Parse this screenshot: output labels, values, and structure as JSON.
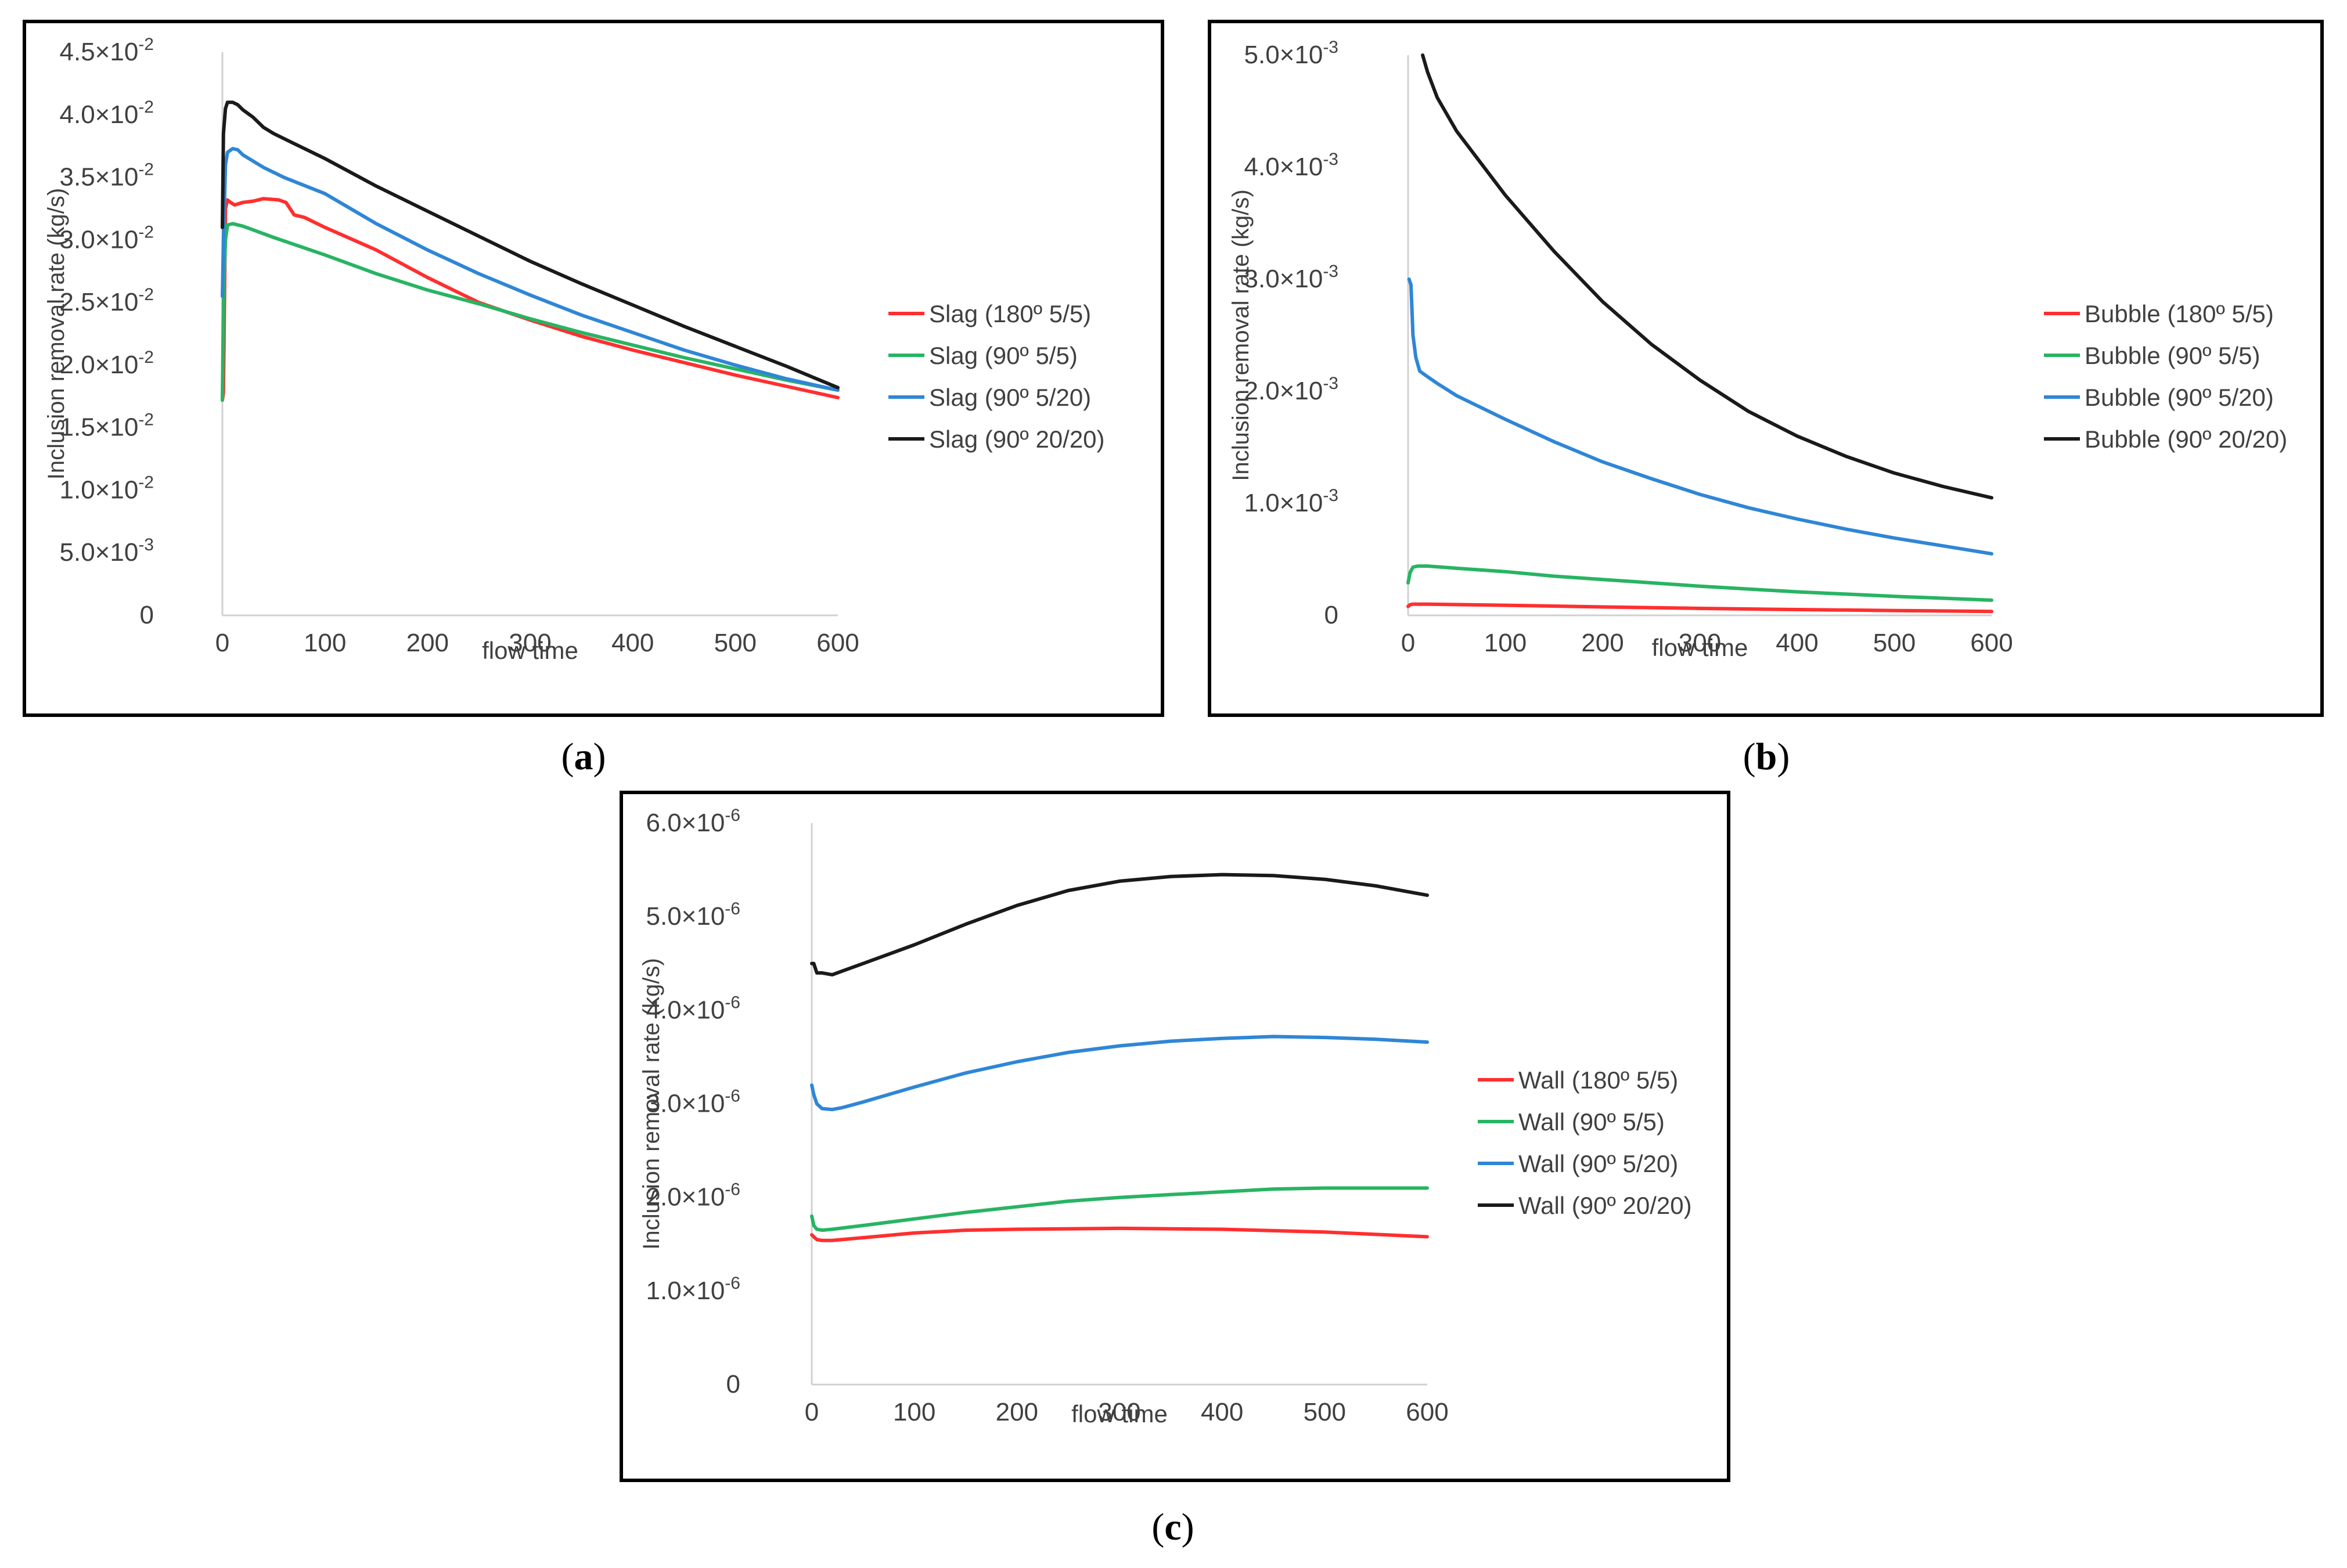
{
  "figures": [
    {
      "label_open": "(",
      "label_letter": "a",
      "label_close": ")"
    },
    {
      "label_open": "(",
      "label_letter": "b",
      "label_close": ")"
    },
    {
      "label_open": "(",
      "label_letter": "c",
      "label_close": ")"
    }
  ],
  "colors": {
    "red": "#ff2f2f",
    "green": "#28b463",
    "blue": "#2f86d6",
    "black": "#1a1a1a",
    "axis": "#d0d0d0",
    "frame": "#000000",
    "text": "#404040"
  },
  "chart_data": [
    {
      "type": "line",
      "id": "a",
      "xlabel": "flow time",
      "ylabel": "Inclusion removal rate (kg/s)",
      "xlim": [
        0,
        600
      ],
      "ylim": [
        0,
        0.045
      ],
      "xticks": [
        "0",
        "100",
        "200",
        "300",
        "400",
        "500",
        "600"
      ],
      "yticks": [
        {
          "value": 0,
          "mant": "0",
          "exp": ""
        },
        {
          "value": 0.005,
          "mant": "5.0×10",
          "exp": "-3"
        },
        {
          "value": 0.01,
          "mant": "1.0×10",
          "exp": "-2"
        },
        {
          "value": 0.015,
          "mant": "1.5×10",
          "exp": "-2"
        },
        {
          "value": 0.02,
          "mant": "2.0×10",
          "exp": "-2"
        },
        {
          "value": 0.025,
          "mant": "2.5×10",
          "exp": "-2"
        },
        {
          "value": 0.03,
          "mant": "3.0×10",
          "exp": "-2"
        },
        {
          "value": 0.035,
          "mant": "3.5×10",
          "exp": "-2"
        },
        {
          "value": 0.04,
          "mant": "4.0×10",
          "exp": "-2"
        },
        {
          "value": 0.045,
          "mant": "4.5×10",
          "exp": "-2"
        }
      ],
      "legend": "right",
      "series": [
        {
          "name": "Slag (180º 5/5)",
          "color": "red",
          "x": [
            0,
            1,
            3,
            5,
            8,
            12,
            20,
            30,
            40,
            55,
            62,
            70,
            80,
            100,
            150,
            200,
            250,
            300,
            350,
            400,
            450,
            500,
            550,
            600
          ],
          "y": [
            0.0172,
            0.0178,
            0.0325,
            0.0332,
            0.033,
            0.0328,
            0.033,
            0.0331,
            0.0333,
            0.0332,
            0.033,
            0.032,
            0.0318,
            0.031,
            0.0292,
            0.027,
            0.025,
            0.0236,
            0.0223,
            0.0212,
            0.0202,
            0.0192,
            0.0183,
            0.0174
          ]
        },
        {
          "name": "Slag (90º 5/5)",
          "color": "green",
          "x": [
            0,
            1,
            3,
            5,
            10,
            20,
            30,
            50,
            100,
            150,
            200,
            250,
            300,
            350,
            400,
            450,
            500,
            550,
            600
          ],
          "y": [
            0.0172,
            0.0255,
            0.03,
            0.0312,
            0.0313,
            0.0311,
            0.0308,
            0.0302,
            0.0288,
            0.0273,
            0.026,
            0.0249,
            0.0237,
            0.0226,
            0.0216,
            0.0206,
            0.0197,
            0.0188,
            0.018
          ]
        },
        {
          "name": "Slag (90º 5/20)",
          "color": "blue",
          "x": [
            0,
            1,
            3,
            5,
            10,
            15,
            20,
            40,
            60,
            100,
            150,
            200,
            250,
            300,
            350,
            400,
            450,
            500,
            550,
            600
          ],
          "y": [
            0.0255,
            0.03,
            0.036,
            0.037,
            0.0373,
            0.0372,
            0.0368,
            0.0358,
            0.035,
            0.0337,
            0.0313,
            0.0292,
            0.0273,
            0.0256,
            0.024,
            0.0226,
            0.0212,
            0.02,
            0.0189,
            0.018
          ]
        },
        {
          "name": "Slag (90º 20/20)",
          "color": "black",
          "x": [
            0,
            1,
            3,
            5,
            10,
            15,
            20,
            30,
            40,
            50,
            70,
            100,
            150,
            200,
            250,
            300,
            350,
            400,
            450,
            500,
            550,
            600
          ],
          "y": [
            0.031,
            0.0385,
            0.0405,
            0.041,
            0.041,
            0.0408,
            0.0404,
            0.0398,
            0.039,
            0.0385,
            0.0377,
            0.0365,
            0.0343,
            0.0323,
            0.0303,
            0.0283,
            0.0265,
            0.0248,
            0.0231,
            0.0215,
            0.0199,
            0.0182
          ]
        }
      ]
    },
    {
      "type": "line",
      "id": "b",
      "xlabel": "flow time",
      "ylabel": "Inclusion removal rate (kg/s)",
      "xlim": [
        0,
        600
      ],
      "ylim": [
        0,
        0.005
      ],
      "xticks": [
        "0",
        "100",
        "200",
        "300",
        "400",
        "500",
        "600"
      ],
      "yticks": [
        {
          "value": 0,
          "mant": "0",
          "exp": ""
        },
        {
          "value": 0.001,
          "mant": "1.0×10",
          "exp": "-3"
        },
        {
          "value": 0.002,
          "mant": "2.0×10",
          "exp": "-3"
        },
        {
          "value": 0.003,
          "mant": "3.0×10",
          "exp": "-3"
        },
        {
          "value": 0.004,
          "mant": "4.0×10",
          "exp": "-3"
        },
        {
          "value": 0.005,
          "mant": "5.0×10",
          "exp": "-3"
        }
      ],
      "legend": "right",
      "series": [
        {
          "name": "Bubble (180º 5/5)",
          "color": "red",
          "x": [
            0,
            2,
            5,
            20,
            100,
            200,
            300,
            400,
            500,
            600
          ],
          "y": [
            8e-05,
            9.5e-05,
            0.0001,
            0.0001,
            9e-05,
            7.5e-05,
            6.2e-05,
            5.2e-05,
            4.3e-05,
            3.5e-05
          ]
        },
        {
          "name": "Bubble (90º 5/5)",
          "color": "green",
          "x": [
            0,
            2,
            5,
            10,
            20,
            50,
            100,
            150,
            200,
            300,
            400,
            500,
            600
          ],
          "y": [
            0.00029,
            0.00038,
            0.00043,
            0.00044,
            0.00044,
            0.00042,
            0.00039,
            0.00035,
            0.00032,
            0.00026,
            0.00021,
            0.00017,
            0.000135
          ]
        },
        {
          "name": "Bubble (90º 5/20)",
          "color": "blue",
          "x": [
            1,
            3,
            5,
            8,
            12,
            20,
            30,
            50,
            100,
            150,
            200,
            250,
            300,
            350,
            400,
            450,
            500,
            550,
            600
          ],
          "y": [
            0.003,
            0.00295,
            0.0025,
            0.0023,
            0.00218,
            0.00213,
            0.00207,
            0.00196,
            0.00175,
            0.00155,
            0.00137,
            0.00122,
            0.00108,
            0.00096,
            0.00086,
            0.00077,
            0.00069,
            0.00062,
            0.00055
          ]
        },
        {
          "name": "Bubble (90º 20/20)",
          "color": "black",
          "x": [
            15,
            20,
            30,
            50,
            100,
            150,
            200,
            250,
            300,
            350,
            400,
            450,
            500,
            550,
            600
          ],
          "y": [
            0.005,
            0.00485,
            0.00462,
            0.00432,
            0.00375,
            0.00325,
            0.0028,
            0.00242,
            0.0021,
            0.00182,
            0.0016,
            0.00142,
            0.00127,
            0.00115,
            0.00105
          ]
        }
      ]
    },
    {
      "type": "line",
      "id": "c",
      "xlabel": "flow time",
      "ylabel": "Inclusion removal rate (kg/s)",
      "xlim": [
        0,
        600
      ],
      "ylim": [
        0,
        6e-06
      ],
      "xticks": [
        "0",
        "100",
        "200",
        "300",
        "400",
        "500",
        "600"
      ],
      "yticks": [
        {
          "value": 0,
          "mant": "0",
          "exp": ""
        },
        {
          "value": 1e-06,
          "mant": "1.0×10",
          "exp": "-6"
        },
        {
          "value": 2e-06,
          "mant": "2.0×10",
          "exp": "-6"
        },
        {
          "value": 3e-06,
          "mant": "3.0×10",
          "exp": "-6"
        },
        {
          "value": 4e-06,
          "mant": "4.0×10",
          "exp": "-6"
        },
        {
          "value": 5e-06,
          "mant": "5.0×10",
          "exp": "-6"
        },
        {
          "value": 6e-06,
          "mant": "6.0×10",
          "exp": "-6"
        }
      ],
      "legend": "right",
      "series": [
        {
          "name": "Wall (180º 5/5)",
          "color": "red",
          "x": [
            0,
            2,
            5,
            10,
            20,
            50,
            100,
            150,
            200,
            300,
            400,
            500,
            600
          ],
          "y": [
            1.6e-06,
            1.58e-06,
            1.55e-06,
            1.54e-06,
            1.54e-06,
            1.57e-06,
            1.62e-06,
            1.65e-06,
            1.66e-06,
            1.67e-06,
            1.66e-06,
            1.63e-06,
            1.58e-06
          ]
        },
        {
          "name": "Wall (90º 5/5)",
          "color": "green",
          "x": [
            0,
            2,
            5,
            10,
            20,
            50,
            100,
            150,
            200,
            250,
            300,
            350,
            400,
            450,
            500,
            550,
            600
          ],
          "y": [
            1.8e-06,
            1.7e-06,
            1.66e-06,
            1.65e-06,
            1.66e-06,
            1.7e-06,
            1.77e-06,
            1.84e-06,
            1.9e-06,
            1.96e-06,
            2e-06,
            2.03e-06,
            2.06e-06,
            2.09e-06,
            2.1e-06,
            2.1e-06,
            2.1e-06
          ]
        },
        {
          "name": "Wall (90º 5/20)",
          "color": "blue",
          "x": [
            0,
            2,
            5,
            10,
            20,
            30,
            50,
            100,
            150,
            200,
            250,
            300,
            350,
            400,
            450,
            500,
            550,
            600
          ],
          "y": [
            3.2e-06,
            3.1e-06,
            3e-06,
            2.95e-06,
            2.94e-06,
            2.96e-06,
            3.02e-06,
            3.18e-06,
            3.33e-06,
            3.45e-06,
            3.55e-06,
            3.62e-06,
            3.67e-06,
            3.7e-06,
            3.72e-06,
            3.71e-06,
            3.69e-06,
            3.66e-06
          ]
        },
        {
          "name": "Wall (90º 20/20)",
          "color": "black",
          "x": [
            0,
            2,
            5,
            10,
            20,
            30,
            50,
            100,
            150,
            200,
            250,
            300,
            350,
            400,
            450,
            500,
            550,
            600
          ],
          "y": [
            4.5e-06,
            4.5e-06,
            4.4e-06,
            4.4e-06,
            4.38e-06,
            4.42e-06,
            4.5e-06,
            4.7e-06,
            4.92e-06,
            5.12e-06,
            5.28e-06,
            5.38e-06,
            5.43e-06,
            5.45e-06,
            5.44e-06,
            5.4e-06,
            5.33e-06,
            5.23e-06
          ]
        }
      ]
    }
  ]
}
